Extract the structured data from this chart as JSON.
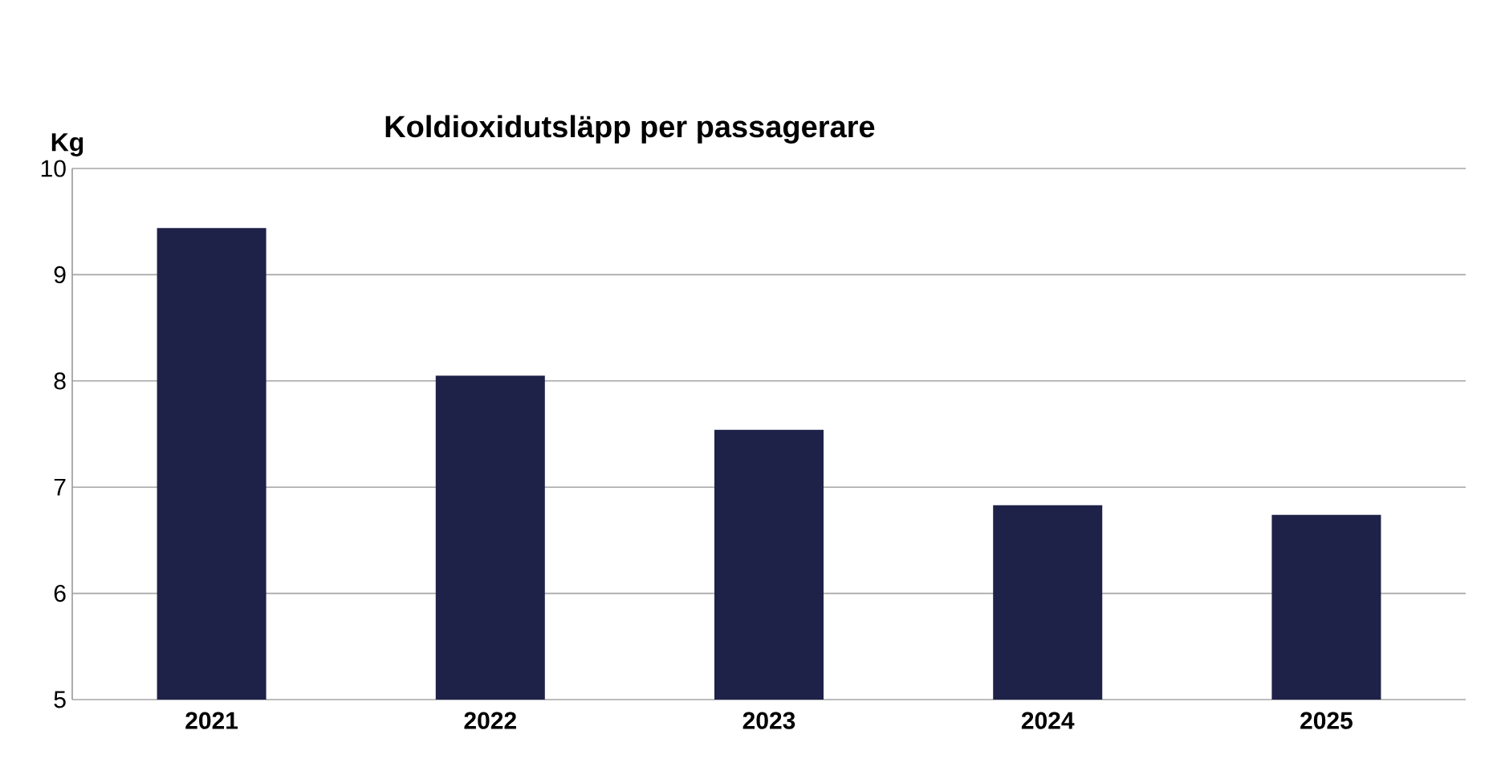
{
  "chart_data": {
    "type": "bar",
    "title": "Koldioxidutsläpp per passagerare",
    "ylabel": "Kg",
    "categories": [
      "2021",
      "2022",
      "2023",
      "2024",
      "2025"
    ],
    "values": [
      9.44,
      8.05,
      7.54,
      6.83,
      6.74
    ],
    "color": "#1e2148",
    "ylim": [
      5,
      10
    ],
    "yticks": [
      5,
      6,
      7,
      8,
      9,
      10
    ],
    "grid": "y"
  }
}
